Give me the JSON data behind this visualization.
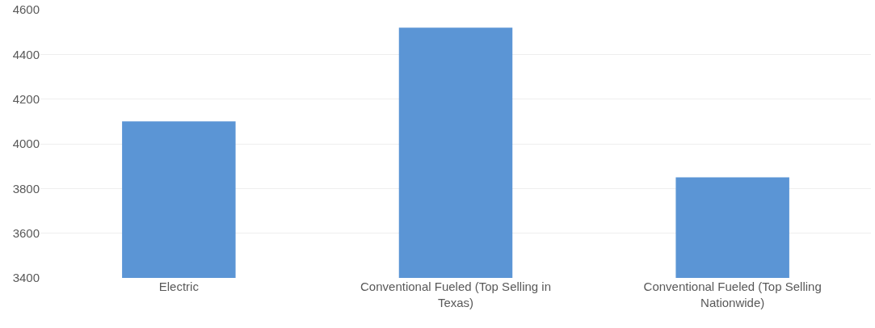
{
  "chart_data": {
    "type": "bar",
    "categories": [
      "Electric",
      "Conventional Fueled (Top Selling in Texas)",
      "Conventional Fueled (Top Selling Nationwide)"
    ],
    "values": [
      4100,
      4520,
      3850
    ],
    "color": "#5b95d5",
    "ylim": [
      3400,
      4600
    ],
    "yticks": [
      3400,
      3600,
      3800,
      4000,
      4200,
      4400,
      4600
    ],
    "grid": "y"
  }
}
